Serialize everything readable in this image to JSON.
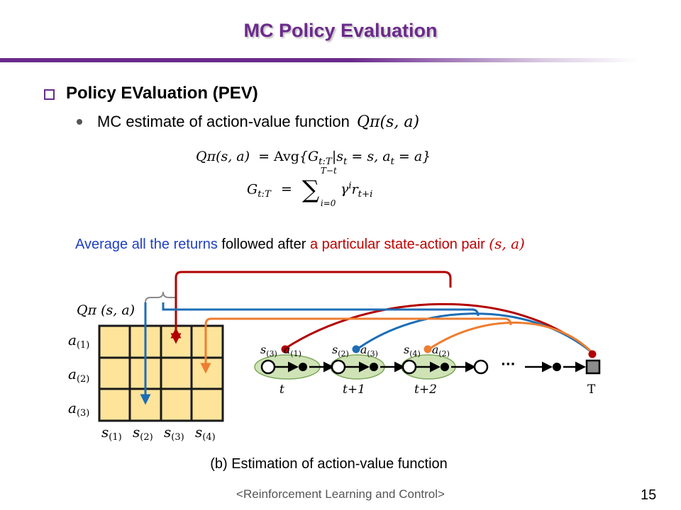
{
  "slide": {
    "title": "MC Policy Evaluation",
    "heading": "Policy EValuation (PEV)",
    "subbullet": "MC estimate of action-value function",
    "subbullet_math": "Qπ(s, a)",
    "eq1": {
      "lhs": "Qπ(s, a)",
      "eq": "=",
      "op": "Avg",
      "body": "{G",
      "body_sub": "t:T",
      "cond": "|s",
      "cond_sub": "t",
      "cond_eq": " = s, a",
      "cond_sub2": "t",
      "cond_end": " = a}"
    },
    "eq2": {
      "lhs": "G",
      "lhs_sub": "t:T",
      "eq": "=",
      "sum": "∑",
      "upper": "T−t",
      "lower": "i=0",
      "gamma": "γ",
      "gamma_sup": "i",
      "r": "r",
      "r_sub": "t+i"
    },
    "avg_line": {
      "part1": "Average all the returns",
      "part2": " followed after ",
      "part3": "a particular state-action pair",
      "part4": "(s, a)"
    },
    "caption": "(b) Estimation of action-value function",
    "footer": "<Reinforcement Learning and Control>",
    "page_number": "15"
  },
  "diagram": {
    "table_label": "Qπ (s, a)",
    "row_labels": [
      "a(1)",
      "a(2)",
      "a(3)"
    ],
    "row_label_base": "a",
    "row_label_subs": [
      "(1)",
      "(2)",
      "(3)"
    ],
    "col_label_base": "s",
    "col_label_subs": [
      "(1)",
      "(2)",
      "(3)",
      "(4)"
    ],
    "pairs": [
      {
        "s": "s",
        "s_sub": "(3)",
        "a": "a",
        "a_sub": "(1)"
      },
      {
        "s": "s",
        "s_sub": "(2)",
        "a": "a",
        "a_sub": "(3)"
      },
      {
        "s": "s",
        "s_sub": "(4)",
        "a": "a",
        "a_sub": "(2)"
      }
    ],
    "time_labels": [
      "t",
      "t+1",
      "t+2",
      "T"
    ],
    "ellipsis": "···",
    "colors": {
      "cell": "#fde49a",
      "grid": "#1a1a1a",
      "red": "#b20000",
      "blue": "#1c6db5",
      "orange": "#ee7d31",
      "gray": "#8b8b8b",
      "node_fill": "#cfe3b6",
      "node_stroke": "#7ea85a"
    }
  }
}
